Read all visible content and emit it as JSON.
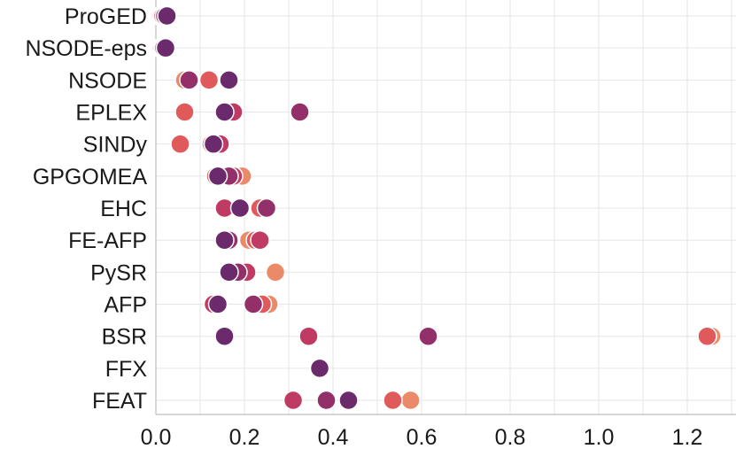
{
  "chart_data": {
    "type": "scatter",
    "title": "",
    "xlabel": "",
    "ylabel": "",
    "xlim": [
      0.0,
      1.31
    ],
    "xticks": [
      0.0,
      0.2,
      0.4,
      0.6,
      0.8,
      1.0,
      1.2
    ],
    "xtick_labels": [
      "0.0",
      "0.2",
      "0.4",
      "0.6",
      "0.8",
      "1.0",
      "1.2"
    ],
    "grid": true,
    "categories": [
      "ProGED",
      "NSODE-eps",
      "NSODE",
      "EPLEX",
      "SINDy",
      "GPGOMEA",
      "EHC",
      "FE-AFP",
      "PySR",
      "AFP",
      "BSR",
      "FFX",
      "FEAT"
    ],
    "palette": [
      "#eb8a68",
      "#e05a5c",
      "#c03b63",
      "#93306a",
      "#6a2a6b"
    ],
    "rows": [
      {
        "category": "ProGED",
        "points": [
          {
            "x": 0.01,
            "c": 0
          },
          {
            "x": 0.013,
            "c": 1
          },
          {
            "x": 0.016,
            "c": 2
          },
          {
            "x": 0.02,
            "c": 3
          },
          {
            "x": 0.025,
            "c": 4
          }
        ]
      },
      {
        "category": "NSODE-eps",
        "points": [
          {
            "x": 0.01,
            "c": 0
          },
          {
            "x": 0.012,
            "c": 1
          },
          {
            "x": 0.015,
            "c": 2
          },
          {
            "x": 0.018,
            "c": 3
          },
          {
            "x": 0.022,
            "c": 4
          }
        ]
      },
      {
        "category": "NSODE",
        "points": [
          {
            "x": 0.065,
            "c": 0
          },
          {
            "x": 0.075,
            "c": 3
          },
          {
            "x": 0.12,
            "c": 1
          },
          {
            "x": 0.165,
            "c": 4
          }
        ]
      },
      {
        "category": "EPLEX",
        "points": [
          {
            "x": 0.065,
            "c": 1
          },
          {
            "x": 0.175,
            "c": 2
          },
          {
            "x": 0.155,
            "c": 4
          },
          {
            "x": 0.325,
            "c": 3
          }
        ]
      },
      {
        "category": "SINDy",
        "points": [
          {
            "x": 0.055,
            "c": 1
          },
          {
            "x": 0.125,
            "c": 0
          },
          {
            "x": 0.145,
            "c": 2
          },
          {
            "x": 0.13,
            "c": 4
          }
        ]
      },
      {
        "category": "GPGOMEA",
        "points": [
          {
            "x": 0.135,
            "c": 1
          },
          {
            "x": 0.195,
            "c": 0
          },
          {
            "x": 0.175,
            "c": 2
          },
          {
            "x": 0.165,
            "c": 3
          },
          {
            "x": 0.14,
            "c": 4
          }
        ]
      },
      {
        "category": "EHC",
        "points": [
          {
            "x": 0.155,
            "c": 2
          },
          {
            "x": 0.235,
            "c": 1
          },
          {
            "x": 0.25,
            "c": 3
          },
          {
            "x": 0.19,
            "c": 4
          }
        ]
      },
      {
        "category": "FE-AFP",
        "points": [
          {
            "x": 0.21,
            "c": 0
          },
          {
            "x": 0.225,
            "c": 1
          },
          {
            "x": 0.235,
            "c": 2
          },
          {
            "x": 0.165,
            "c": 3
          },
          {
            "x": 0.155,
            "c": 4
          }
        ]
      },
      {
        "category": "PySR",
        "points": [
          {
            "x": 0.27,
            "c": 0
          },
          {
            "x": 0.19,
            "c": 1
          },
          {
            "x": 0.205,
            "c": 2
          },
          {
            "x": 0.185,
            "c": 3
          },
          {
            "x": 0.165,
            "c": 4
          }
        ]
      },
      {
        "category": "AFP",
        "points": [
          {
            "x": 0.255,
            "c": 0
          },
          {
            "x": 0.24,
            "c": 1
          },
          {
            "x": 0.13,
            "c": 2
          },
          {
            "x": 0.22,
            "c": 3
          },
          {
            "x": 0.14,
            "c": 4
          }
        ]
      },
      {
        "category": "BSR",
        "points": [
          {
            "x": 1.255,
            "c": 0
          },
          {
            "x": 1.245,
            "c": 1
          },
          {
            "x": 0.345,
            "c": 2
          },
          {
            "x": 0.615,
            "c": 3
          },
          {
            "x": 0.155,
            "c": 4
          }
        ]
      },
      {
        "category": "FFX",
        "points": [
          {
            "x": 0.37,
            "c": 4
          }
        ]
      },
      {
        "category": "FEAT",
        "points": [
          {
            "x": 0.575,
            "c": 0
          },
          {
            "x": 0.535,
            "c": 1
          },
          {
            "x": 0.31,
            "c": 2
          },
          {
            "x": 0.385,
            "c": 3
          },
          {
            "x": 0.435,
            "c": 4
          }
        ]
      }
    ]
  }
}
